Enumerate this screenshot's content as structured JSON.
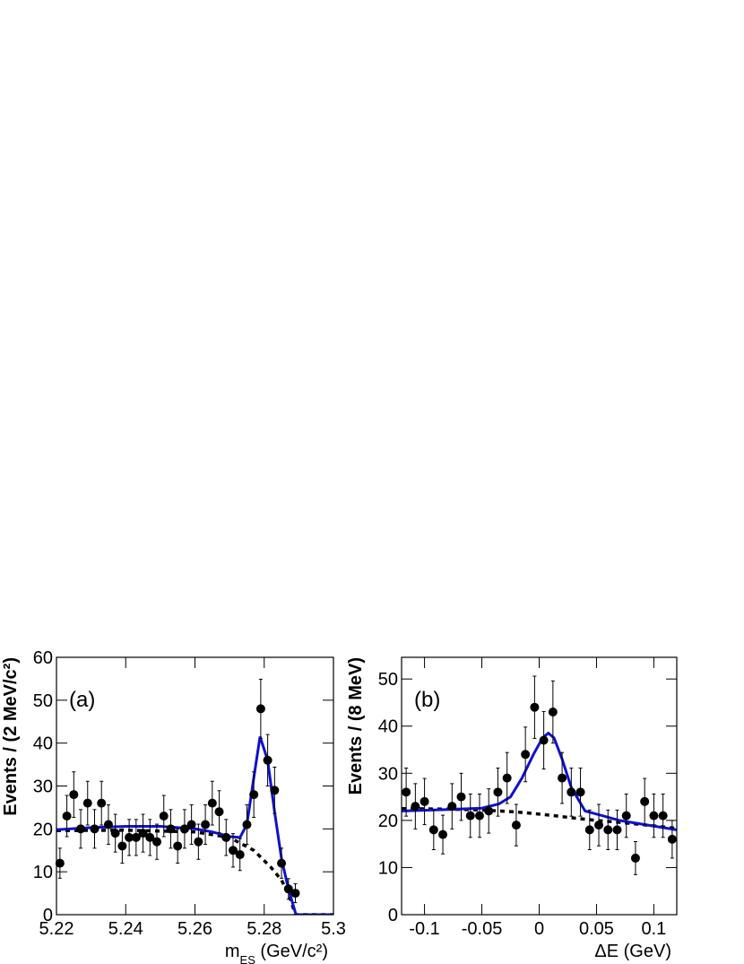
{
  "chart_data": [
    {
      "type": "scatter",
      "panel_label": "(a)",
      "xlabel": [
        "m",
        "ES",
        " (GeV/c²)"
      ],
      "ylabel": "Events / (2 MeV/c²)",
      "xlim": [
        5.22,
        5.3
      ],
      "ylim": [
        0,
        60
      ],
      "xticks": [
        5.22,
        5.24,
        5.26,
        5.28,
        5.3
      ],
      "yticks": [
        0,
        10,
        20,
        30,
        40,
        50,
        60
      ],
      "points": {
        "color": "#000000",
        "x": [
          5.221,
          5.223,
          5.225,
          5.227,
          5.229,
          5.231,
          5.233,
          5.235,
          5.237,
          5.239,
          5.241,
          5.243,
          5.245,
          5.247,
          5.249,
          5.251,
          5.253,
          5.255,
          5.257,
          5.259,
          5.261,
          5.263,
          5.265,
          5.267,
          5.269,
          5.271,
          5.273,
          5.275,
          5.277,
          5.279,
          5.281,
          5.283,
          5.285,
          5.287,
          5.289
        ],
        "values": [
          12,
          23,
          28,
          20,
          26,
          20,
          26,
          21,
          19,
          16,
          18,
          18,
          19,
          18,
          17,
          23,
          20,
          16,
          20,
          21,
          17,
          21,
          26,
          24,
          18,
          15,
          14,
          21,
          28,
          48,
          36,
          29,
          12,
          6,
          5
        ],
        "errors": [
          3.5,
          4.8,
          5.3,
          4.5,
          5.1,
          4.5,
          5.1,
          4.6,
          4.4,
          4,
          4.2,
          4.2,
          4.4,
          4.2,
          4.1,
          4.8,
          4.5,
          4,
          4.5,
          4.6,
          4.1,
          4.6,
          5.1,
          4.9,
          4.2,
          3.9,
          3.7,
          4.6,
          5.3,
          6.9,
          6,
          5.4,
          3.5,
          2.4,
          2.2
        ]
      },
      "fit": {
        "color": "#1010d0",
        "x": [
          5.22,
          5.23,
          5.24,
          5.25,
          5.26,
          5.265,
          5.27,
          5.273,
          5.275,
          5.277,
          5.2788,
          5.281,
          5.283,
          5.285,
          5.287,
          5.289,
          5.2892,
          5.3
        ],
        "values": [
          19.8,
          20.3,
          20.6,
          20.6,
          20,
          19.3,
          18.2,
          18,
          21,
          32,
          41.5,
          36,
          24,
          13,
          6,
          0.5,
          0,
          0
        ]
      },
      "background": {
        "color": "#000000",
        "x": [
          5.22,
          5.24,
          5.26,
          5.27,
          5.277,
          5.282,
          5.285,
          5.287,
          5.289,
          5.3
        ],
        "values": [
          19.6,
          19.7,
          19.3,
          18,
          15,
          11,
          8,
          5,
          0,
          0
        ]
      }
    },
    {
      "type": "scatter",
      "panel_label": "(b)",
      "xlabel": [
        "ΔE (GeV)"
      ],
      "ylabel": "Events / (8 MeV)",
      "xlim": [
        -0.12,
        0.12
      ],
      "ylim": [
        0,
        54.6
      ],
      "xticks": [
        -0.1,
        -0.05,
        0,
        0.05,
        0.1
      ],
      "yticks": [
        0,
        10,
        20,
        30,
        40,
        50
      ],
      "points": {
        "color": "#000000",
        "x": [
          -0.116,
          -0.108,
          -0.1,
          -0.092,
          -0.084,
          -0.076,
          -0.068,
          -0.06,
          -0.052,
          -0.044,
          -0.036,
          -0.028,
          -0.02,
          -0.012,
          -0.004,
          0.004,
          0.012,
          0.02,
          0.028,
          0.036,
          0.044,
          0.052,
          0.06,
          0.068,
          0.076,
          0.084,
          0.092,
          0.1,
          0.108,
          0.116
        ],
        "values": [
          26,
          23,
          24,
          18,
          17,
          23,
          25,
          21,
          21,
          22,
          26,
          29,
          19,
          34,
          44,
          37,
          43,
          29,
          26,
          26,
          18,
          19,
          18,
          18,
          21,
          12,
          24,
          21,
          21,
          16
        ],
        "errors": [
          5.1,
          4.8,
          4.9,
          4.2,
          4.1,
          4.8,
          5,
          4.6,
          4.6,
          4.7,
          5.1,
          5.4,
          4.4,
          5.8,
          6.6,
          6.1,
          6.6,
          5.4,
          5.1,
          5.1,
          4.2,
          4.4,
          4.2,
          4.2,
          4.6,
          3.5,
          4.9,
          4.6,
          4.6,
          4
        ]
      },
      "fit": {
        "color": "#1010d0",
        "x": [
          -0.12,
          -0.08,
          -0.05,
          -0.035,
          -0.025,
          -0.015,
          -0.005,
          0.003,
          0.008,
          0.013,
          0.02,
          0.028,
          0.04,
          0.055,
          0.07,
          0.09,
          0.12
        ],
        "values": [
          22,
          22.3,
          22.6,
          23.5,
          25,
          29,
          34,
          37.5,
          38.5,
          37.5,
          33,
          27,
          22,
          21,
          20,
          19.2,
          18
        ]
      },
      "background": {
        "color": "#000000",
        "x": [
          -0.12,
          -0.08,
          -0.05,
          -0.02,
          0.01,
          0.03,
          0.05,
          0.07,
          0.09,
          0.12
        ],
        "values": [
          22.5,
          22.4,
          22.2,
          21.8,
          21.1,
          20.5,
          20,
          19.6,
          19.1,
          18.3
        ]
      }
    }
  ]
}
